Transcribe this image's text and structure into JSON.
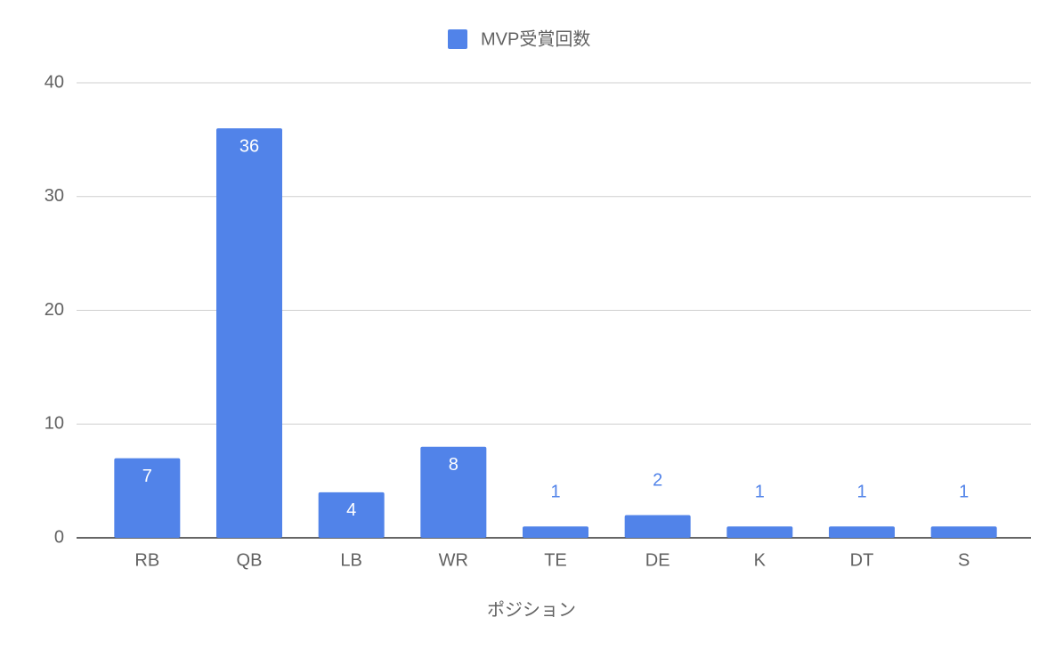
{
  "chart_data": {
    "type": "bar",
    "x_label": "ポジション",
    "categories": [
      "RB",
      "QB",
      "LB",
      "WR",
      "TE",
      "DE",
      "K",
      "DT",
      "S"
    ],
    "series": [
      {
        "name": "MVP受賞回数",
        "color": "#5183e9",
        "values": [
          7,
          36,
          4,
          8,
          1,
          2,
          1,
          1,
          1
        ]
      }
    ],
    "ylim": [
      0,
      40
    ],
    "yticks": [
      0,
      10,
      20,
      30,
      40
    ],
    "grid": true,
    "legend": "top"
  }
}
